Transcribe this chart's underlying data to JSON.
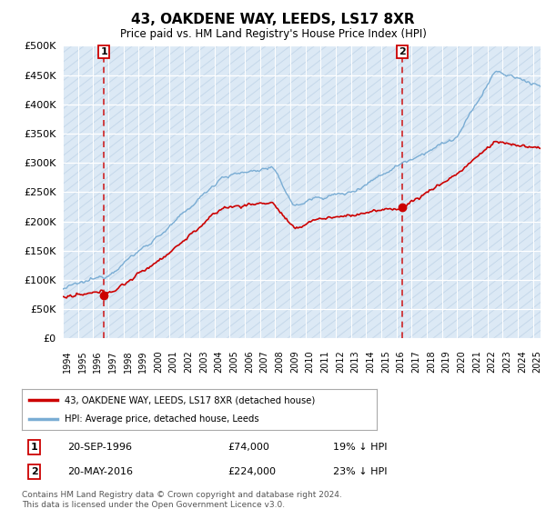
{
  "title": "43, OAKDENE WAY, LEEDS, LS17 8XR",
  "subtitle": "Price paid vs. HM Land Registry's House Price Index (HPI)",
  "background_color": "#dce9f5",
  "grid_color": "#ffffff",
  "hpi_color": "#7aadd4",
  "price_color": "#cc0000",
  "sale1_date": "20-SEP-1996",
  "sale1_price": 74000,
  "sale1_label": "19% ↓ HPI",
  "sale2_date": "20-MAY-2016",
  "sale2_price": 224000,
  "sale2_label": "23% ↓ HPI",
  "ylim": [
    0,
    500000
  ],
  "yticks": [
    0,
    50000,
    100000,
    150000,
    200000,
    250000,
    300000,
    350000,
    400000,
    450000,
    500000
  ],
  "footer": "Contains HM Land Registry data © Crown copyright and database right 2024.\nThis data is licensed under the Open Government Licence v3.0.",
  "legend_label1": "43, OAKDENE WAY, LEEDS, LS17 8XR (detached house)",
  "legend_label2": "HPI: Average price, detached house, Leeds",
  "sale1_x": 1996.72,
  "sale2_x": 2016.38,
  "xmin": 1994.0,
  "xmax": 2025.5
}
